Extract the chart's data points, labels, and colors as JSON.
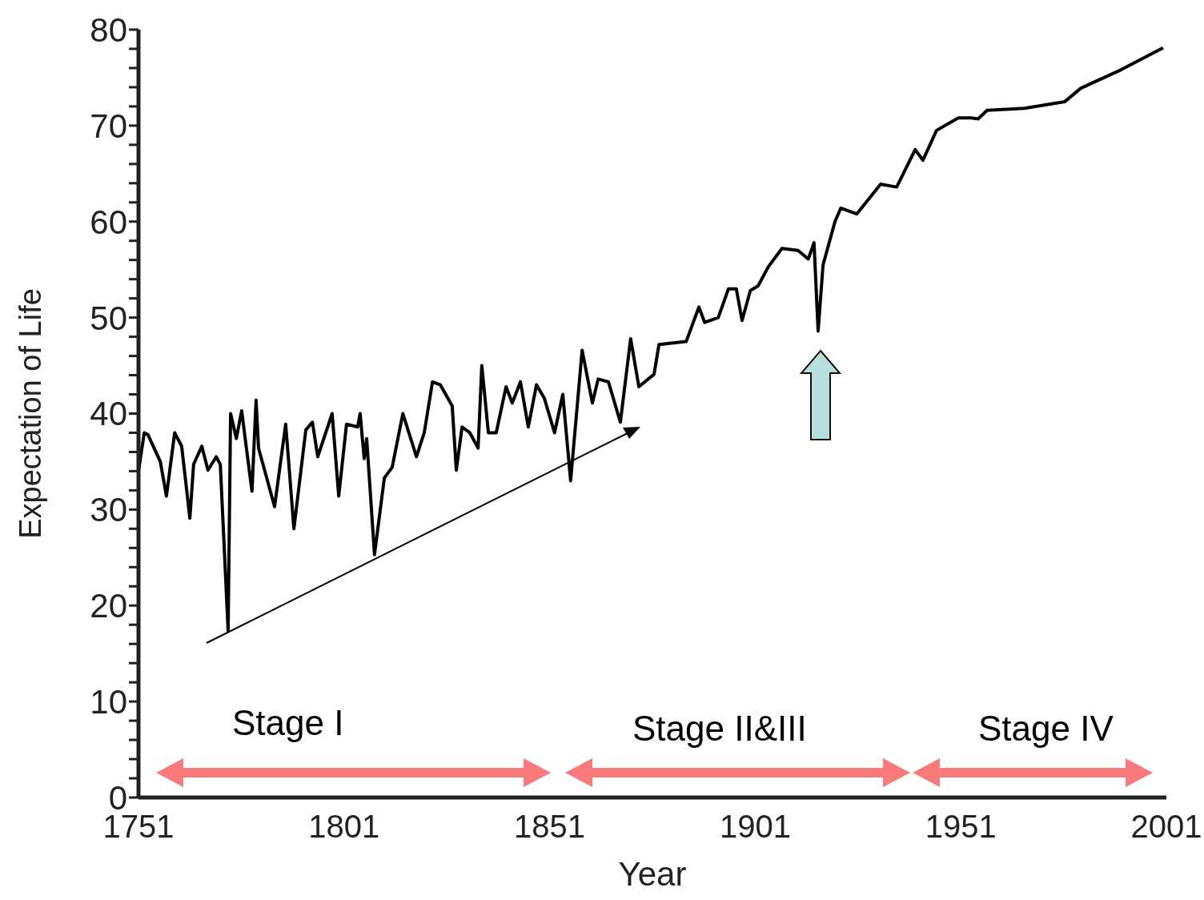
{
  "chart_data": {
    "type": "line",
    "xlabel": "Year",
    "ylabel": "Expectation of Life",
    "xlim": [
      1751,
      2001
    ],
    "xticks": [
      1751,
      1801,
      1851,
      1901,
      1951,
      2001
    ],
    "ylim": [
      0,
      80
    ],
    "yticks": [
      0,
      {
        "value": 2,
        "label": null
      },
      {
        "value": 4,
        "label": null
      },
      {
        "value": 6,
        "label": null
      },
      {
        "value": 8,
        "label": null
      },
      10,
      {
        "value": 12,
        "label": null
      },
      {
        "value": 14,
        "label": null
      },
      {
        "value": 16,
        "label": null
      },
      {
        "value": 18,
        "label": null
      },
      20,
      {
        "value": 22,
        "label": null
      },
      {
        "value": 24,
        "label": null
      },
      {
        "value": 26,
        "label": null
      },
      {
        "value": 28,
        "label": null
      },
      30,
      {
        "value": 32,
        "label": null
      },
      {
        "value": 34,
        "label": null
      },
      {
        "value": 36,
        "label": null
      },
      {
        "value": 38,
        "label": null
      },
      40,
      {
        "value": 42,
        "label": null
      },
      {
        "value": 44,
        "label": null
      },
      {
        "value": 46,
        "label": null
      },
      {
        "value": 48,
        "label": null
      },
      50,
      {
        "value": 52,
        "label": null
      },
      {
        "value": 54,
        "label": null
      },
      {
        "value": 56,
        "label": null
      },
      {
        "value": 58,
        "label": null
      },
      60,
      {
        "value": 62,
        "label": null
      },
      {
        "value": 64,
        "label": null
      },
      {
        "value": 66,
        "label": null
      },
      {
        "value": 68,
        "label": null
      },
      70,
      {
        "value": 72,
        "label": null
      },
      {
        "value": 74,
        "label": null
      },
      {
        "value": 76,
        "label": null
      },
      {
        "value": 78,
        "label": null
      },
      80
    ],
    "marker": "none",
    "line_style": "solid",
    "annotations": [
      "Stage I",
      "Stage II&III",
      "Stage IV"
    ],
    "series": [
      {
        "color": "#000000",
        "x": [
          1751,
          1752.4,
          1753.3,
          1756.3,
          1757.8,
          1759.8,
          1761.5,
          1763.5,
          1764.4,
          1766.4,
          1767.9,
          1769.9,
          1770.9,
          1772.8,
          1773.4,
          1774.8,
          1776.1,
          1777.1,
          1778.6,
          1779.6,
          1780.2,
          1784.1,
          1786.8,
          1788.8,
          1791.7,
          1793.3,
          1794.6,
          1798.1,
          1799.7,
          1801.6,
          1804.3,
          1804.9,
          1805.9,
          1806.5,
          1808.4,
          1810.8,
          1812.7,
          1815.3,
          1818.6,
          1820.5,
          1822.5,
          1824.4,
          1827.3,
          1828.3,
          1829.7,
          1831.6,
          1833.6,
          1834.5,
          1836.1,
          1838.0,
          1840.4,
          1841.9,
          1843.9,
          1845.8,
          1847.8,
          1849.7,
          1852.2,
          1854.2,
          1856.1,
          1858.9,
          1861.4,
          1862.8,
          1865.3,
          1868.2,
          1870.7,
          1872.7,
          1876.4,
          1877.6,
          1884.2,
          1887.3,
          1888.7,
          1892.0,
          1894.5,
          1896.4,
          1897.8,
          1899.8,
          1901.7,
          1904.2,
          1907.5,
          1911.4,
          1913.9,
          1915.3,
          1916.3,
          1917.5,
          1920.4,
          1921.8,
          1925.7,
          1931.5,
          1935.4,
          1939.9,
          1941.8,
          1945.1,
          1950.4,
          1953.5,
          1955.2,
          1957.4,
          1966.5,
          1976.3,
          1980.2,
          1989.9,
          2000.2
        ],
        "values": [
          34,
          38,
          37.8,
          35,
          31.4,
          38,
          36.6,
          29.1,
          34.7,
          36.6,
          34.1,
          35.5,
          34.7,
          17.4,
          40,
          37.4,
          40.3,
          36.9,
          31.9,
          41.4,
          36.4,
          30.3,
          38.9,
          28,
          38.3,
          39.1,
          35.5,
          40,
          31.4,
          38.9,
          38.6,
          40,
          35.3,
          37.4,
          25.3,
          33.3,
          34.4,
          40,
          35.5,
          38,
          43.3,
          43,
          40.8,
          34.1,
          38.6,
          38,
          36.4,
          45,
          38,
          38,
          42.8,
          41.1,
          43.3,
          38.6,
          43,
          41.6,
          38,
          42,
          33,
          46.6,
          41.1,
          43.6,
          43.3,
          39.1,
          47.8,
          42.8,
          44.1,
          47.2,
          47.5,
          51.1,
          49.5,
          50,
          53,
          53,
          49.7,
          52.8,
          53.3,
          55.3,
          57.2,
          57,
          56.1,
          57.8,
          48.6,
          55.5,
          60,
          61.4,
          60.8,
          63.9,
          63.6,
          67.5,
          66.4,
          69.5,
          70.8,
          70.8,
          70.7,
          71.6,
          71.8,
          72.5,
          73.9,
          75.8,
          78.1
        ]
      }
    ]
  }
}
